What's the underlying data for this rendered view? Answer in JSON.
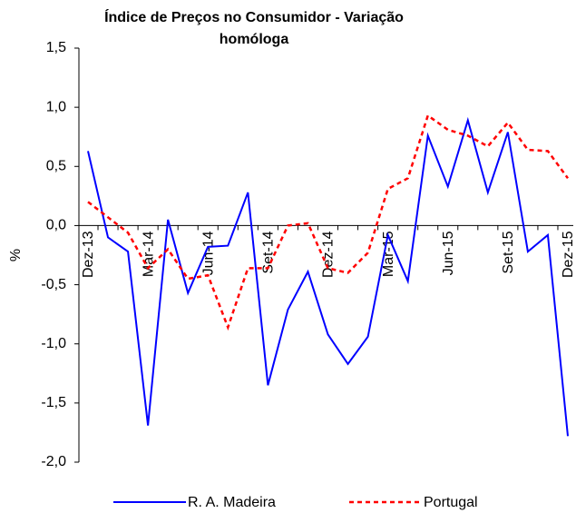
{
  "chart_data": {
    "type": "line",
    "title": "Índice de Preços no Consumidor - Variação homóloga",
    "y_label": "%",
    "categories": [
      "Dez-13",
      null,
      null,
      "Mar-14",
      null,
      null,
      "Jun-14",
      null,
      null,
      "Set-14",
      null,
      null,
      "Dez-14",
      null,
      null,
      "Mar-15",
      null,
      null,
      "Jun-15",
      null,
      null,
      "Set-15",
      null,
      null,
      "Dez-15"
    ],
    "series": [
      {
        "name": "R. A. Madeira",
        "color": "#0000ff",
        "dashed": false,
        "values": [
          0.63,
          -0.1,
          -0.22,
          -1.69,
          0.05,
          -0.57,
          -0.18,
          -0.17,
          0.28,
          -1.35,
          -0.71,
          -0.39,
          -0.92,
          -1.17,
          -0.94,
          -0.08,
          -0.47,
          0.76,
          0.33,
          0.89,
          0.28,
          0.79,
          -0.22,
          -0.08,
          -1.78
        ]
      },
      {
        "name": "Portugal",
        "color": "#ff0000",
        "dashed": true,
        "values": [
          0.2,
          0.07,
          -0.06,
          -0.36,
          -0.2,
          -0.45,
          -0.42,
          -0.86,
          -0.36,
          -0.36,
          0.0,
          0.02,
          -0.36,
          -0.4,
          -0.23,
          0.31,
          0.4,
          0.93,
          0.81,
          0.76,
          0.67,
          0.87,
          0.64,
          0.63,
          0.4
        ]
      }
    ],
    "ylim": [
      -2.0,
      1.5
    ],
    "yticks": [
      {
        "value": -2.0,
        "label": "-2,0"
      },
      {
        "value": -1.5,
        "label": "-1,5"
      },
      {
        "value": -1.0,
        "label": "-1,0"
      },
      {
        "value": -0.5,
        "label": "-0,5"
      },
      {
        "value": 0.0,
        "label": "0,0"
      },
      {
        "value": 0.5,
        "label": "0,5"
      },
      {
        "value": 1.0,
        "label": "1,0"
      },
      {
        "value": 1.5,
        "label": "1,5"
      }
    ],
    "grid": false,
    "legend": "bottom"
  }
}
